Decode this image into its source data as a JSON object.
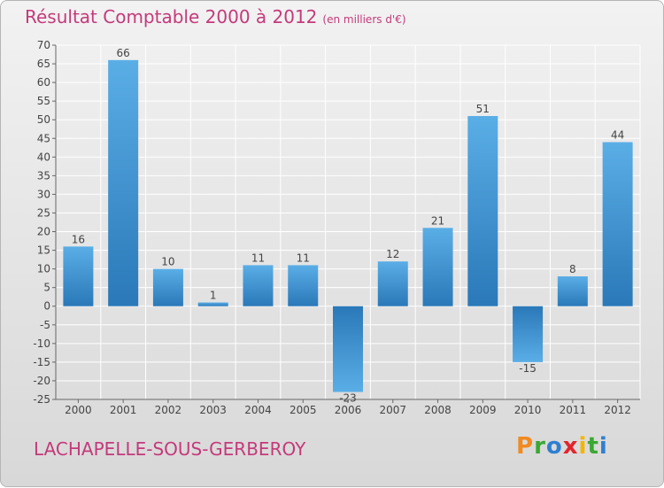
{
  "header": {
    "title": "Résultat Comptable 2000 à 2012",
    "subtitle": "(en milliers d'€)"
  },
  "footer": {
    "place": "LACHAPELLE-SOUS-GERBEROY",
    "brand": "Proxiti",
    "brand_colors": [
      "#f18a1f",
      "#3aa832",
      "#2f7fd0",
      "#e2242c",
      "#f5b400",
      "#3aa832",
      "#2f7fd0"
    ]
  },
  "colors": {
    "bar_dark": "#2a78b8",
    "bar_light": "#5aaee6",
    "grid": "#ffffff",
    "text": "#444444",
    "accent": "#c43a7a"
  },
  "chart_data": {
    "type": "bar",
    "title": "Résultat Comptable 2000 à 2012",
    "ylabel": "(en milliers d'€)",
    "xlabel": "",
    "categories": [
      "2000",
      "2001",
      "2002",
      "2003",
      "2004",
      "2005",
      "2006",
      "2007",
      "2008",
      "2009",
      "2010",
      "2011",
      "2012"
    ],
    "values": [
      16,
      66,
      10,
      1,
      11,
      11,
      -23,
      12,
      21,
      51,
      -15,
      8,
      44
    ],
    "ylim": [
      -25,
      70
    ],
    "yticks": [
      70,
      65,
      60,
      55,
      50,
      45,
      40,
      35,
      30,
      25,
      20,
      15,
      10,
      5,
      0,
      -5,
      -10,
      -15,
      -20,
      -25
    ],
    "grid": true,
    "legend": "none"
  }
}
